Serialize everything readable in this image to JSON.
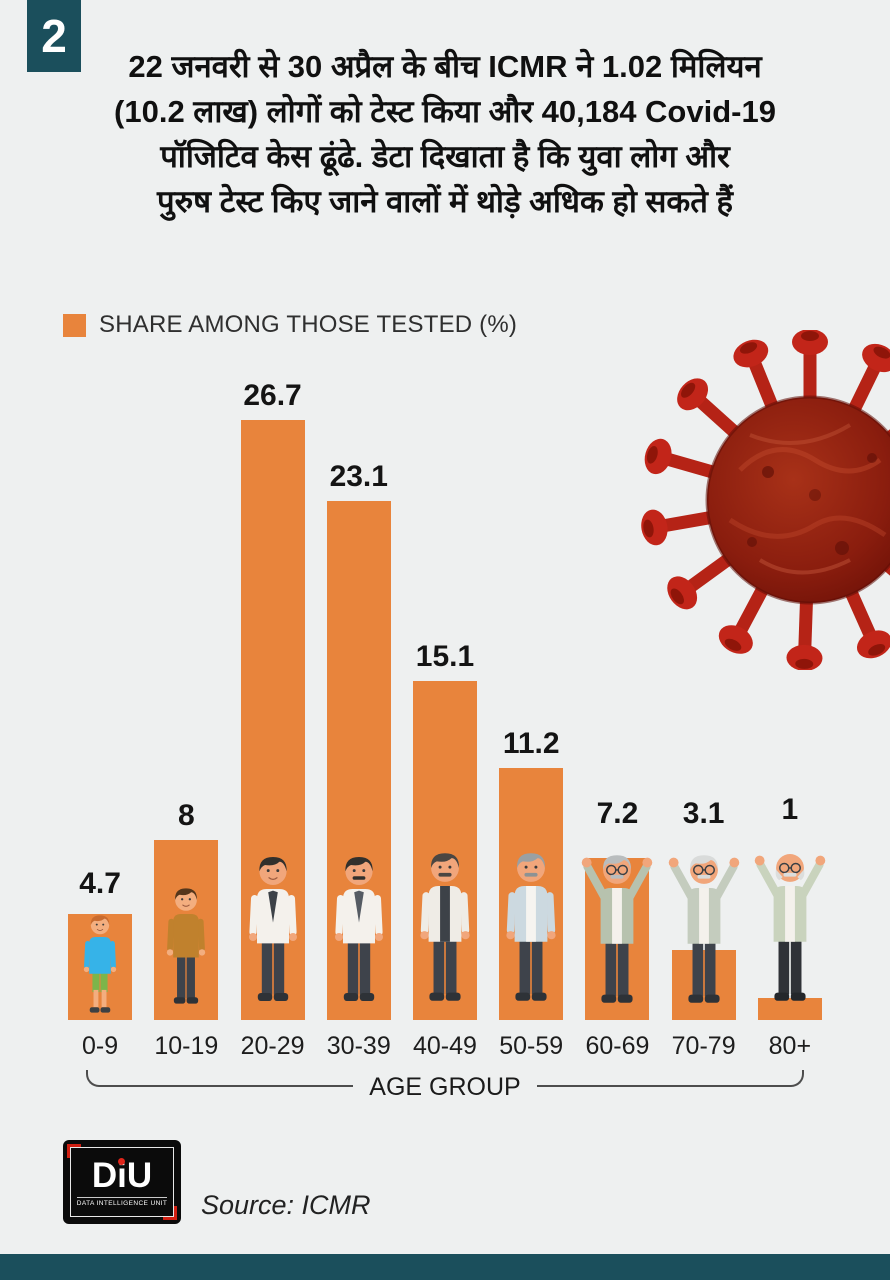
{
  "page": {
    "badge": "2",
    "background": "#eef0f0",
    "band_color": "#1b4f5c",
    "accent_color": "#e8843c"
  },
  "headline": {
    "lines": [
      "22 जनवरी से 30 अप्रैल के बीच ICMR ने 1.02 मिलियन",
      "(10.2 लाख) लोगों को टेस्ट किया और 40,184 Covid-19",
      "पॉजिटिव केस ढूंढे. डेटा दिखाता है कि युवा लोग और",
      "पुरुष टेस्ट किए जाने वालों में थोड़े अधिक हो सकते हैं"
    ]
  },
  "legend": {
    "label": "SHARE AMONG THOSE TESTED (%)",
    "swatch_color": "#e8843c"
  },
  "chart_data": {
    "type": "bar",
    "title": "SHARE AMONG THOSE TESTED (%)",
    "categories": [
      "0-9",
      "10-19",
      "20-29",
      "30-39",
      "40-49",
      "50-59",
      "60-69",
      "70-79",
      "80+"
    ],
    "values": [
      4.7,
      8,
      26.7,
      23.1,
      15.1,
      11.2,
      7.2,
      3.1,
      1
    ],
    "value_labels": [
      "4.7",
      "8",
      "26.7",
      "23.1",
      "15.1",
      "11.2",
      "7.2",
      "3.1",
      "1"
    ],
    "xlabel": "AGE GROUP",
    "ylabel": "",
    "ylim": [
      0,
      28
    ],
    "bar_color": "#e8843c",
    "grid": false,
    "legend_position": "top-left",
    "figure_icons": [
      "child-boy-figure",
      "teen-boy-figure",
      "young-man-figure",
      "man-mustache-figure",
      "middle-aged-man-coat-figure",
      "older-man-coat-figure",
      "senior-man-cheering-figure",
      "senior-man-glasses-cheering-figure",
      "elderly-man-cheering-figure"
    ]
  },
  "footer": {
    "source": "Source: ICMR",
    "logo_text": "DiU",
    "logo_subtext": "DATA INTELLIGENCE UNIT"
  },
  "decor": {
    "virus_icon": "coronavirus-icon"
  }
}
